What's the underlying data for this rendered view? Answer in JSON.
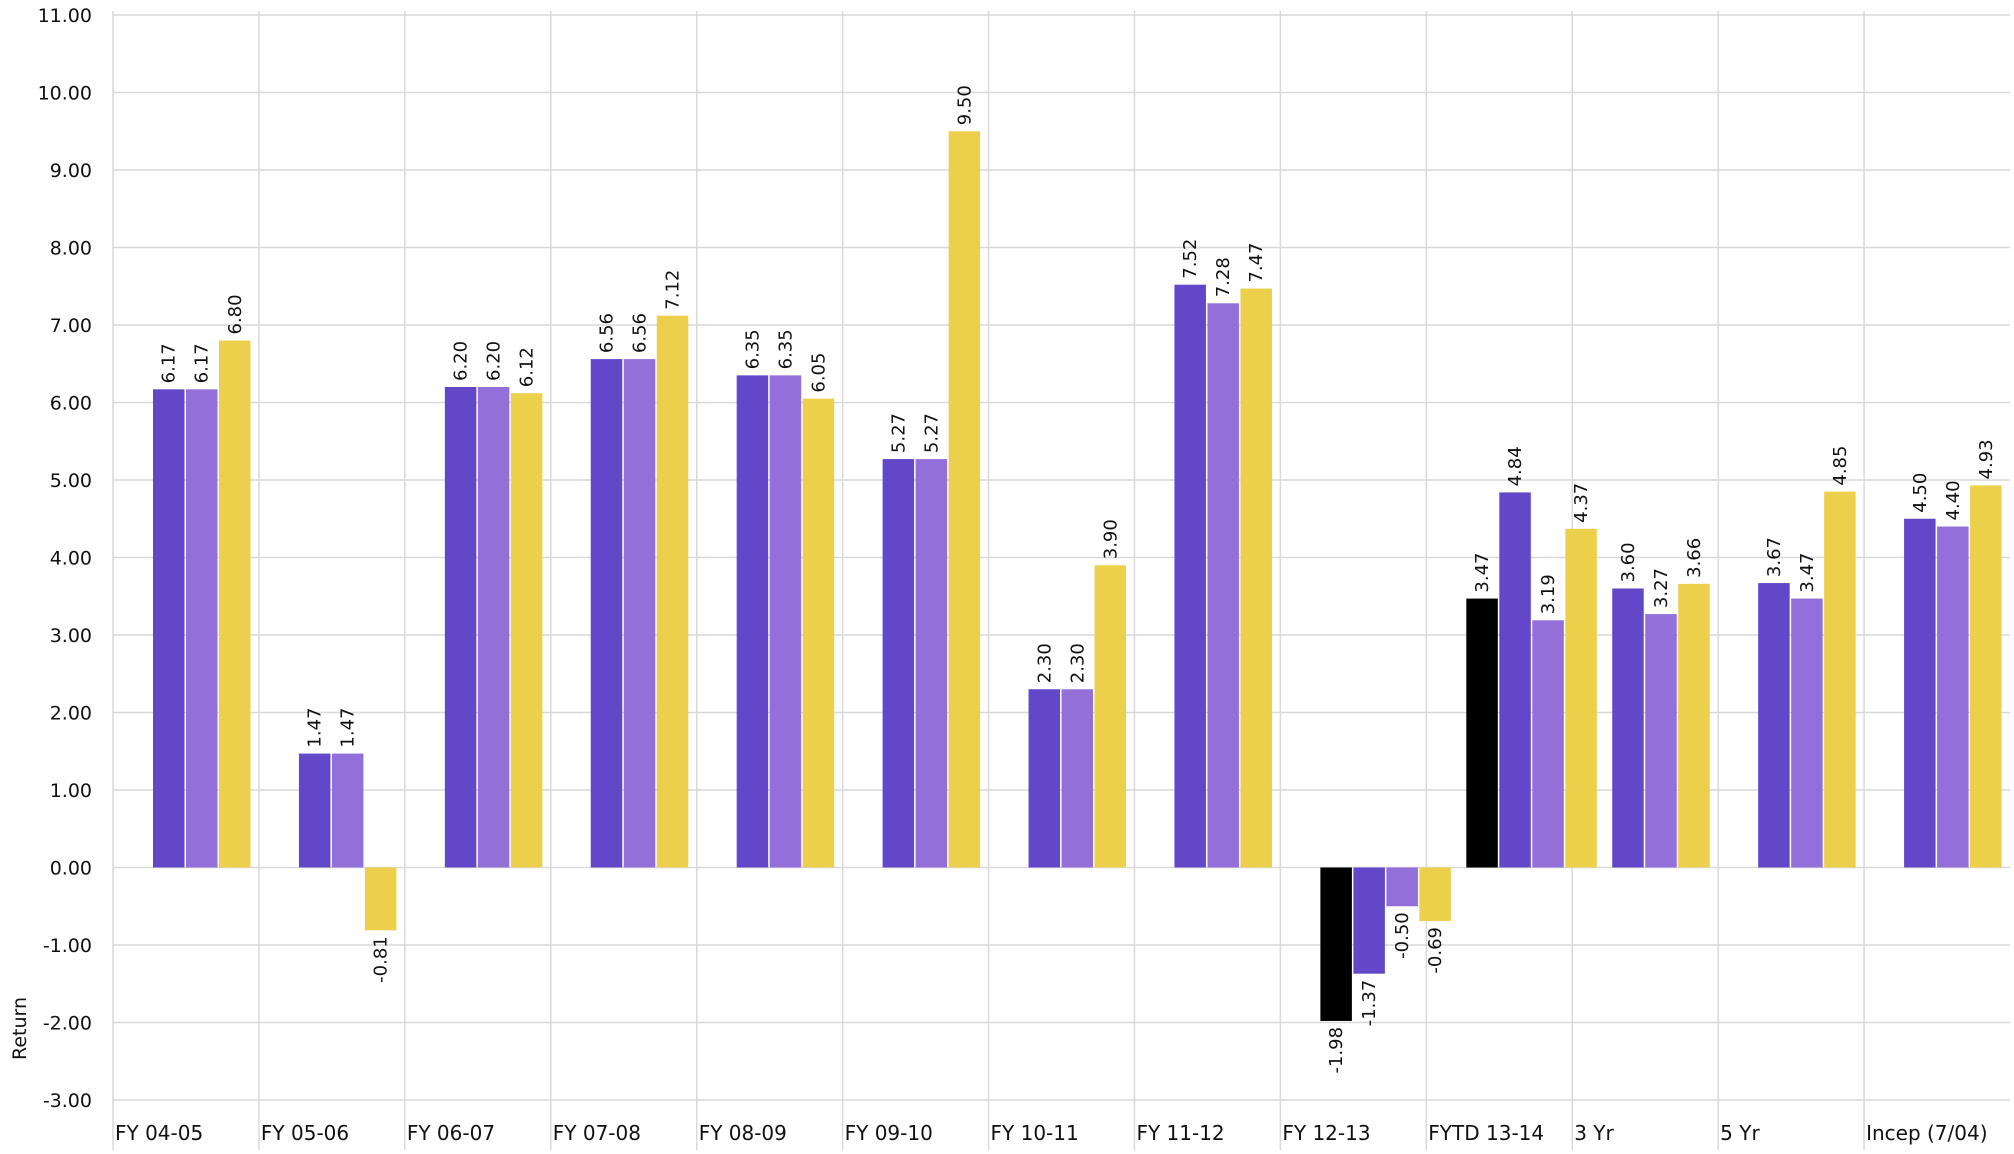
{
  "chart_data": {
    "type": "bar",
    "title": "",
    "xlabel": "",
    "ylabel": "Return",
    "ylim": [
      -3,
      11
    ],
    "yticks": [
      "-3.00",
      "-2.00",
      "-1.00",
      "0.00",
      "1.00",
      "2.00",
      "3.00",
      "4.00",
      "5.00",
      "6.00",
      "7.00",
      "8.00",
      "9.00",
      "10.00",
      "11.00"
    ],
    "grid": true,
    "legend": "none",
    "categories": [
      "FY 04-05",
      "FY 05-06",
      "FY 06-07",
      "FY 07-08",
      "FY 08-09",
      "FY 09-10",
      "FY 10-11",
      "FY 11-12",
      "FY 12-13",
      "FYTD 13-14",
      "3 Yr",
      "5 Yr",
      "Incep (7/04)"
    ],
    "series": [
      {
        "color": "#000000",
        "values": [
          null,
          null,
          null,
          null,
          null,
          null,
          null,
          null,
          -1.98,
          3.47,
          null,
          null,
          null
        ],
        "labels": [
          "",
          "",
          "",
          "",
          "",
          "",
          "",
          "",
          "-1.98",
          "3.47",
          "",
          "",
          ""
        ]
      },
      {
        "color": "#6247c9",
        "values": [
          6.17,
          1.47,
          6.2,
          6.56,
          6.35,
          5.27,
          2.3,
          7.52,
          -1.37,
          4.84,
          3.6,
          3.67,
          4.5
        ],
        "labels": [
          "6.17",
          "1.47",
          "6.20",
          "6.56",
          "6.35",
          "5.27",
          "2.30",
          "7.52",
          "-1.37",
          "4.84",
          "3.60",
          "3.67",
          "4.50"
        ]
      },
      {
        "color": "#9370d9",
        "values": [
          6.17,
          1.47,
          6.2,
          6.56,
          6.35,
          5.27,
          2.3,
          7.28,
          -0.5,
          3.19,
          3.27,
          3.47,
          4.4
        ],
        "labels": [
          "6.17",
          "1.47",
          "6.20",
          "6.56",
          "6.35",
          "5.27",
          "2.30",
          "7.28",
          "-0.50",
          "3.19",
          "3.27",
          "3.47",
          "4.40"
        ]
      },
      {
        "color": "#ecd04c",
        "values": [
          6.8,
          -0.81,
          6.12,
          7.12,
          6.05,
          9.5,
          3.9,
          7.47,
          -0.69,
          4.37,
          3.66,
          4.85,
          4.93
        ],
        "labels": [
          "6.80",
          "-0.81",
          "6.12",
          "7.12",
          "6.05",
          "9.50",
          "3.90",
          "7.47",
          "-0.69",
          "4.37",
          "3.66",
          "4.85",
          "4.93"
        ]
      }
    ]
  }
}
